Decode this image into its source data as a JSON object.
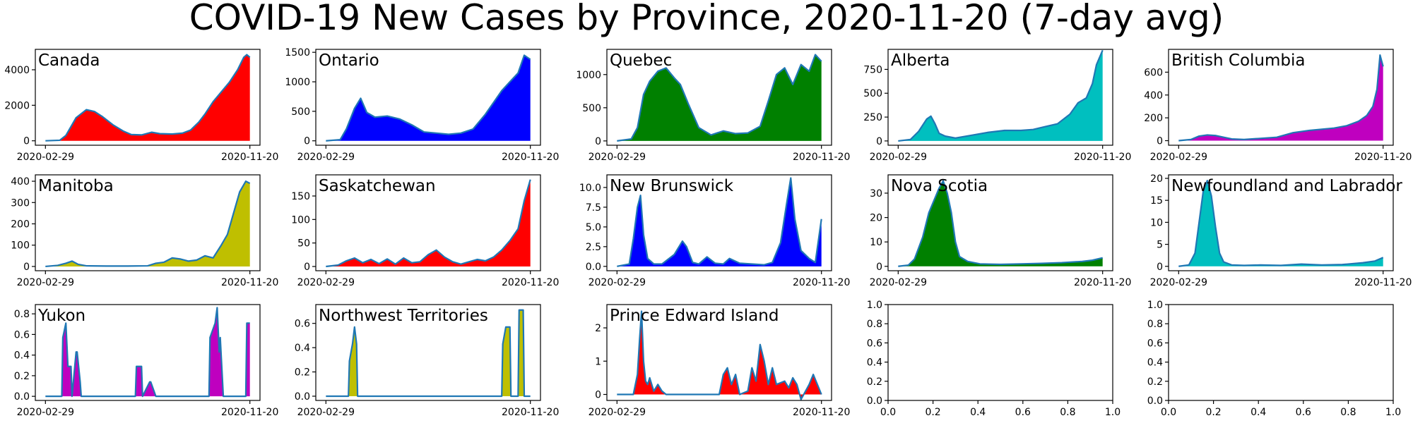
{
  "figure": {
    "title": "COVID-19 New Cases by Province, 2020-11-20 (7-day avg)",
    "line_color": "#1f77b4"
  },
  "chart_data": [
    {
      "type": "area",
      "name": "Canada",
      "color": "#ff0000",
      "x_ticks": [
        "2020-02-29",
        "2020-11-20"
      ],
      "y_ticks": [
        "0",
        "2000",
        "4000"
      ],
      "y_tick_values": [
        0,
        2000,
        4000
      ],
      "ylim": [
        -250,
        5150
      ],
      "x_norm": [
        0,
        0.07,
        0.1,
        0.15,
        0.2,
        0.24,
        0.28,
        0.33,
        0.38,
        0.42,
        0.47,
        0.52,
        0.56,
        0.62,
        0.67,
        0.71,
        0.75,
        0.78,
        0.82,
        0.86,
        0.9,
        0.94,
        0.97,
        0.985,
        1.0
      ],
      "values": [
        0,
        30,
        300,
        1300,
        1750,
        1650,
        1350,
        900,
        550,
        350,
        330,
        480,
        400,
        380,
        430,
        600,
        1050,
        1500,
        2200,
        2750,
        3300,
        4000,
        4700,
        4850,
        4700
      ]
    },
    {
      "type": "area",
      "name": "Ontario",
      "color": "#0000ff",
      "x_ticks": [
        "2020-02-29",
        "2020-11-20"
      ],
      "y_ticks": [
        "0",
        "500",
        "1000",
        "1500"
      ],
      "y_tick_values": [
        0,
        500,
        1000,
        1500
      ],
      "ylim": [
        -75,
        1550
      ],
      "x_norm": [
        0,
        0.07,
        0.1,
        0.14,
        0.17,
        0.2,
        0.24,
        0.3,
        0.36,
        0.42,
        0.48,
        0.54,
        0.6,
        0.66,
        0.72,
        0.78,
        0.82,
        0.86,
        0.9,
        0.94,
        0.97,
        1.0
      ],
      "values": [
        0,
        20,
        200,
        550,
        720,
        480,
        400,
        420,
        370,
        270,
        150,
        130,
        110,
        130,
        200,
        450,
        650,
        850,
        1000,
        1150,
        1450,
        1380
      ]
    },
    {
      "type": "area",
      "name": "Quebec",
      "color": "#008000",
      "x_ticks": [
        "2020-02-29",
        "2020-11-20"
      ],
      "y_ticks": [
        "0",
        "500",
        "1000"
      ],
      "y_tick_values": [
        0,
        500,
        1000
      ],
      "ylim": [
        -65,
        1380
      ],
      "x_norm": [
        0,
        0.07,
        0.1,
        0.13,
        0.16,
        0.2,
        0.24,
        0.28,
        0.31,
        0.35,
        0.4,
        0.46,
        0.52,
        0.58,
        0.64,
        0.7,
        0.74,
        0.78,
        0.82,
        0.86,
        0.9,
        0.94,
        0.97,
        1.0
      ],
      "values": [
        0,
        30,
        200,
        700,
        900,
        1050,
        1100,
        950,
        850,
        550,
        200,
        90,
        150,
        110,
        120,
        220,
        600,
        1000,
        1100,
        850,
        1150,
        1050,
        1300,
        1200
      ]
    },
    {
      "type": "area",
      "name": "Alberta",
      "color": "#00bfbf",
      "x_ticks": [
        "2020-02-29",
        "2020-11-20"
      ],
      "y_ticks": [
        "0",
        "250",
        "500",
        "750"
      ],
      "y_tick_values": [
        0,
        250,
        500,
        750
      ],
      "ylim": [
        -45,
        960
      ],
      "x_norm": [
        0,
        0.06,
        0.1,
        0.14,
        0.16,
        0.18,
        0.2,
        0.23,
        0.28,
        0.36,
        0.44,
        0.52,
        0.6,
        0.66,
        0.72,
        0.78,
        0.84,
        0.88,
        0.92,
        0.95,
        0.97,
        1.0
      ],
      "values": [
        0,
        15,
        100,
        230,
        260,
        180,
        80,
        50,
        30,
        60,
        90,
        110,
        110,
        120,
        150,
        180,
        280,
        400,
        450,
        600,
        800,
        950
      ]
    },
    {
      "type": "area",
      "name": "British Columbia",
      "color": "#bf00bf",
      "x_ticks": [
        "2020-02-29",
        "2020-11-20"
      ],
      "y_ticks": [
        "0",
        "200",
        "400",
        "600"
      ],
      "y_tick_values": [
        0,
        200,
        400,
        600
      ],
      "ylim": [
        -40,
        800
      ],
      "x_norm": [
        0,
        0.06,
        0.1,
        0.14,
        0.18,
        0.22,
        0.26,
        0.32,
        0.4,
        0.48,
        0.56,
        0.64,
        0.7,
        0.76,
        0.82,
        0.88,
        0.92,
        0.95,
        0.97,
        0.985,
        1.0
      ],
      "values": [
        0,
        10,
        40,
        50,
        45,
        30,
        15,
        10,
        20,
        30,
        70,
        90,
        100,
        110,
        130,
        170,
        220,
        300,
        450,
        750,
        650
      ]
    },
    {
      "type": "area",
      "name": "Manitoba",
      "color": "#bfbf00",
      "x_ticks": [
        "2020-02-29",
        "2020-11-20"
      ],
      "y_ticks": [
        "0",
        "100",
        "200",
        "300",
        "400"
      ],
      "y_tick_values": [
        0,
        100,
        200,
        300,
        400
      ],
      "ylim": [
        -20,
        430
      ],
      "x_norm": [
        0,
        0.06,
        0.1,
        0.13,
        0.16,
        0.2,
        0.3,
        0.4,
        0.5,
        0.54,
        0.58,
        0.62,
        0.66,
        0.7,
        0.74,
        0.78,
        0.82,
        0.86,
        0.89,
        0.92,
        0.95,
        0.98,
        1.0
      ],
      "values": [
        0,
        5,
        15,
        25,
        10,
        3,
        2,
        2,
        3,
        15,
        20,
        40,
        35,
        25,
        30,
        50,
        40,
        100,
        150,
        250,
        350,
        400,
        390
      ]
    },
    {
      "type": "area",
      "name": "Saskatchewan",
      "color": "#ff0000",
      "x_ticks": [
        "2020-02-29",
        "2020-11-20"
      ],
      "y_ticks": [
        "0",
        "50",
        "100",
        "150"
      ],
      "y_tick_values": [
        0,
        50,
        100,
        150
      ],
      "ylim": [
        -9,
        195
      ],
      "x_norm": [
        0,
        0.06,
        0.1,
        0.14,
        0.18,
        0.22,
        0.26,
        0.3,
        0.34,
        0.38,
        0.42,
        0.46,
        0.5,
        0.54,
        0.58,
        0.62,
        0.66,
        0.7,
        0.74,
        0.78,
        0.82,
        0.86,
        0.9,
        0.94,
        0.97,
        1.0
      ],
      "values": [
        0,
        3,
        12,
        18,
        8,
        15,
        6,
        16,
        5,
        18,
        8,
        10,
        25,
        35,
        20,
        10,
        5,
        10,
        15,
        12,
        20,
        35,
        55,
        80,
        140,
        185
      ]
    },
    {
      "type": "area",
      "name": "New Brunswick",
      "color": "#0000ff",
      "x_ticks": [
        "2020-02-29",
        "2020-11-20"
      ],
      "y_ticks": [
        "0.0",
        "2.5",
        "5.0",
        "7.5",
        "10.0"
      ],
      "y_tick_values": [
        0,
        2.5,
        5,
        7.5,
        10
      ],
      "ylim": [
        -0.55,
        11.6
      ],
      "x_norm": [
        0,
        0.06,
        0.08,
        0.1,
        0.115,
        0.13,
        0.15,
        0.18,
        0.22,
        0.28,
        0.32,
        0.34,
        0.37,
        0.4,
        0.44,
        0.48,
        0.52,
        0.55,
        0.6,
        0.66,
        0.72,
        0.76,
        0.8,
        0.83,
        0.85,
        0.87,
        0.9,
        0.94,
        0.97,
        1.0
      ],
      "values": [
        0,
        0.3,
        3.5,
        7.5,
        9,
        4,
        1,
        0.3,
        0.3,
        1.5,
        3.2,
        2.5,
        0.5,
        0.3,
        1.2,
        0.4,
        0.3,
        1,
        0.4,
        0.3,
        0.2,
        0.5,
        3,
        8,
        11.2,
        6,
        2,
        1,
        0.5,
        6
      ]
    },
    {
      "type": "area",
      "name": "Nova Scotia",
      "color": "#008000",
      "x_ticks": [
        "2020-02-29",
        "2020-11-20"
      ],
      "y_ticks": [
        "0",
        "10",
        "20",
        "30"
      ],
      "y_tick_values": [
        0,
        10,
        20,
        30
      ],
      "ylim": [
        -1.8,
        37.5
      ],
      "x_norm": [
        0,
        0.05,
        0.08,
        0.12,
        0.15,
        0.18,
        0.2,
        0.22,
        0.24,
        0.26,
        0.28,
        0.3,
        0.34,
        0.4,
        0.5,
        0.6,
        0.7,
        0.8,
        0.9,
        0.95,
        1.0
      ],
      "values": [
        0,
        0.5,
        3,
        12,
        22,
        28,
        32,
        35,
        30,
        22,
        10,
        4,
        2,
        1,
        0.8,
        1,
        1.2,
        1.5,
        2,
        2.5,
        3.5
      ]
    },
    {
      "type": "area",
      "name": "Newfoundland and Labrador",
      "color": "#00bfbf",
      "x_ticks": [
        "2020-02-29",
        "2020-11-20"
      ],
      "y_ticks": [
        "0",
        "5",
        "10",
        "15",
        "20"
      ],
      "y_tick_values": [
        0,
        5,
        10,
        15,
        20
      ],
      "ylim": [
        -1,
        20.8
      ],
      "x_norm": [
        0,
        0.05,
        0.08,
        0.1,
        0.12,
        0.14,
        0.16,
        0.18,
        0.2,
        0.22,
        0.26,
        0.32,
        0.4,
        0.5,
        0.6,
        0.7,
        0.8,
        0.9,
        0.96,
        1.0
      ],
      "values": [
        0,
        0.3,
        3,
        10,
        17,
        19.5,
        16,
        9,
        3,
        1,
        0.3,
        0.2,
        0.3,
        0.2,
        0.5,
        0.3,
        0.4,
        0.8,
        1.2,
        2
      ]
    },
    {
      "type": "area",
      "name": "Yukon",
      "color": "#bf00bf",
      "x_ticks": [
        "2020-02-29",
        "2020-11-20"
      ],
      "y_ticks": [
        "0.0",
        "0.2",
        "0.4",
        "0.6",
        "0.8"
      ],
      "y_tick_values": [
        0,
        0.2,
        0.4,
        0.6,
        0.8
      ],
      "ylim": [
        -0.04,
        0.89
      ],
      "x_norm": [
        0,
        0.08,
        0.085,
        0.1,
        0.11,
        0.125,
        0.13,
        0.15,
        0.155,
        0.17,
        0.175,
        0.19,
        0.195,
        0.44,
        0.445,
        0.47,
        0.475,
        0.51,
        0.515,
        0.54,
        0.545,
        0.8,
        0.805,
        0.83,
        0.84,
        0.85,
        0.855,
        0.87,
        0.875,
        0.98,
        0.985,
        1.0
      ],
      "values": [
        0,
        0,
        0.57,
        0.71,
        0.29,
        0.29,
        0,
        0.43,
        0.43,
        0.14,
        0,
        0,
        0,
        0,
        0.29,
        0.29,
        0,
        0.14,
        0.14,
        0,
        0,
        0,
        0.57,
        0.71,
        0.86,
        0.43,
        0.57,
        0,
        0,
        0,
        0.71,
        0.71
      ]
    },
    {
      "type": "area",
      "name": "Northwest Territories",
      "color": "#bfbf00",
      "x_ticks": [
        "2020-02-29",
        "2020-11-20"
      ],
      "y_ticks": [
        "0.0",
        "0.2",
        "0.4",
        "0.6"
      ],
      "y_tick_values": [
        0,
        0.2,
        0.4,
        0.6
      ],
      "ylim": [
        -0.035,
        0.755
      ],
      "x_norm": [
        0,
        0.11,
        0.115,
        0.13,
        0.14,
        0.15,
        0.155,
        0.86,
        0.865,
        0.88,
        0.885,
        0.9,
        0.905,
        0.94,
        0.945,
        0.965,
        0.97,
        1.0
      ],
      "values": [
        0,
        0,
        0.29,
        0.43,
        0.57,
        0.43,
        0,
        0,
        0.43,
        0.57,
        0.57,
        0.57,
        0,
        0,
        0.71,
        0.71,
        0,
        0
      ]
    },
    {
      "type": "area",
      "name": "Prince Edward Island",
      "color": "#ff0000",
      "x_ticks": [
        "2020-02-29",
        "2020-11-20"
      ],
      "y_ticks": [
        "0",
        "1",
        "2"
      ],
      "y_tick_values": [
        0,
        1,
        2
      ],
      "ylim": [
        -0.18,
        2.7
      ],
      "x_norm": [
        0,
        0.08,
        0.1,
        0.11,
        0.12,
        0.13,
        0.14,
        0.15,
        0.16,
        0.18,
        0.2,
        0.22,
        0.24,
        0.5,
        0.52,
        0.54,
        0.56,
        0.58,
        0.6,
        0.64,
        0.66,
        0.68,
        0.7,
        0.72,
        0.74,
        0.76,
        0.78,
        0.82,
        0.84,
        0.86,
        0.88,
        0.9,
        0.94,
        0.96,
        0.98,
        1.0
      ],
      "values": [
        0,
        0,
        0.6,
        1.6,
        2.5,
        1,
        0.4,
        0.3,
        0.5,
        0.1,
        0.3,
        0.1,
        0,
        0,
        0.6,
        0.8,
        0.3,
        0.6,
        0,
        0.1,
        0.8,
        0.4,
        1.5,
        1,
        0.3,
        0.8,
        0.3,
        0.4,
        0.2,
        0.5,
        0.3,
        -0.15,
        0.3,
        0.6,
        0.3,
        0
      ]
    },
    {
      "type": "empty",
      "x_ticks": [
        "0.0",
        "0.2",
        "0.4",
        "0.6",
        "0.8",
        "1.0"
      ],
      "x_tick_values": [
        0,
        0.2,
        0.4,
        0.6,
        0.8,
        1.0
      ],
      "y_ticks": [
        "0.0",
        "0.2",
        "0.4",
        "0.6",
        "0.8",
        "1.0"
      ],
      "y_tick_values": [
        0,
        0.2,
        0.4,
        0.6,
        0.8,
        1.0
      ],
      "xlim": [
        0,
        1
      ],
      "ylim": [
        0,
        1
      ]
    },
    {
      "type": "empty",
      "x_ticks": [
        "0.0",
        "0.2",
        "0.4",
        "0.6",
        "0.8",
        "1.0"
      ],
      "x_tick_values": [
        0,
        0.2,
        0.4,
        0.6,
        0.8,
        1.0
      ],
      "y_ticks": [
        "0.0",
        "0.2",
        "0.4",
        "0.6",
        "0.8",
        "1.0"
      ],
      "y_tick_values": [
        0,
        0.2,
        0.4,
        0.6,
        0.8,
        1.0
      ],
      "xlim": [
        0,
        1
      ],
      "ylim": [
        0,
        1
      ]
    }
  ]
}
